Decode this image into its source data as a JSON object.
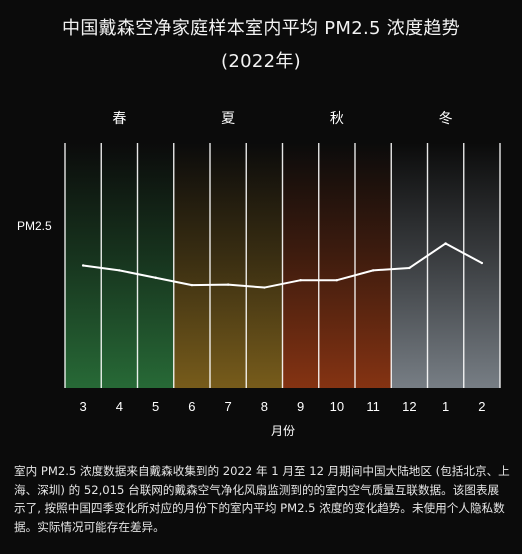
{
  "title": {
    "line1": "中国戴森空净家庭样本室内平均 PM2.5 浓度趋势",
    "line2": "(2022年)"
  },
  "footnote": "室内 PM2.5 浓度数据来自戴森收集到的 2022 年 1 月至 12 月期间中国大陆地区 (包括北京、上海、深圳) 的 52,015 台联网的戴森空气净化风扇监测到的的室内空气质量互联数据。该图表展示了, 按照中国四季变化所对应的月份下的室内平均 PM2.5 浓度的变化趋势。未使用个人隐私数据。实际情况可能存在差异。",
  "chart_data": {
    "type": "line",
    "xlabel": "月份",
    "ylabel": "PM2.5",
    "categories": [
      "3",
      "4",
      "5",
      "6",
      "7",
      "8",
      "9",
      "10",
      "11",
      "12",
      "1",
      "2"
    ],
    "values": [
      50,
      48,
      45,
      42,
      42.2,
      41,
      44,
      44,
      48,
      49,
      59,
      51
    ],
    "ylim": [
      0,
      100
    ],
    "seasons": [
      {
        "name": "春",
        "months": [
          "3",
          "4",
          "5"
        ],
        "color": "#2c7a3e"
      },
      {
        "name": "夏",
        "months": [
          "6",
          "7",
          "8"
        ],
        "color": "#8a6a1e"
      },
      {
        "name": "秋",
        "months": [
          "9",
          "10",
          "11"
        ],
        "color": "#9a3a14"
      },
      {
        "name": "冬",
        "months": [
          "12",
          "1",
          "2"
        ],
        "color": "#8a929a"
      }
    ],
    "grid": true,
    "line_color": "#ffffff"
  }
}
